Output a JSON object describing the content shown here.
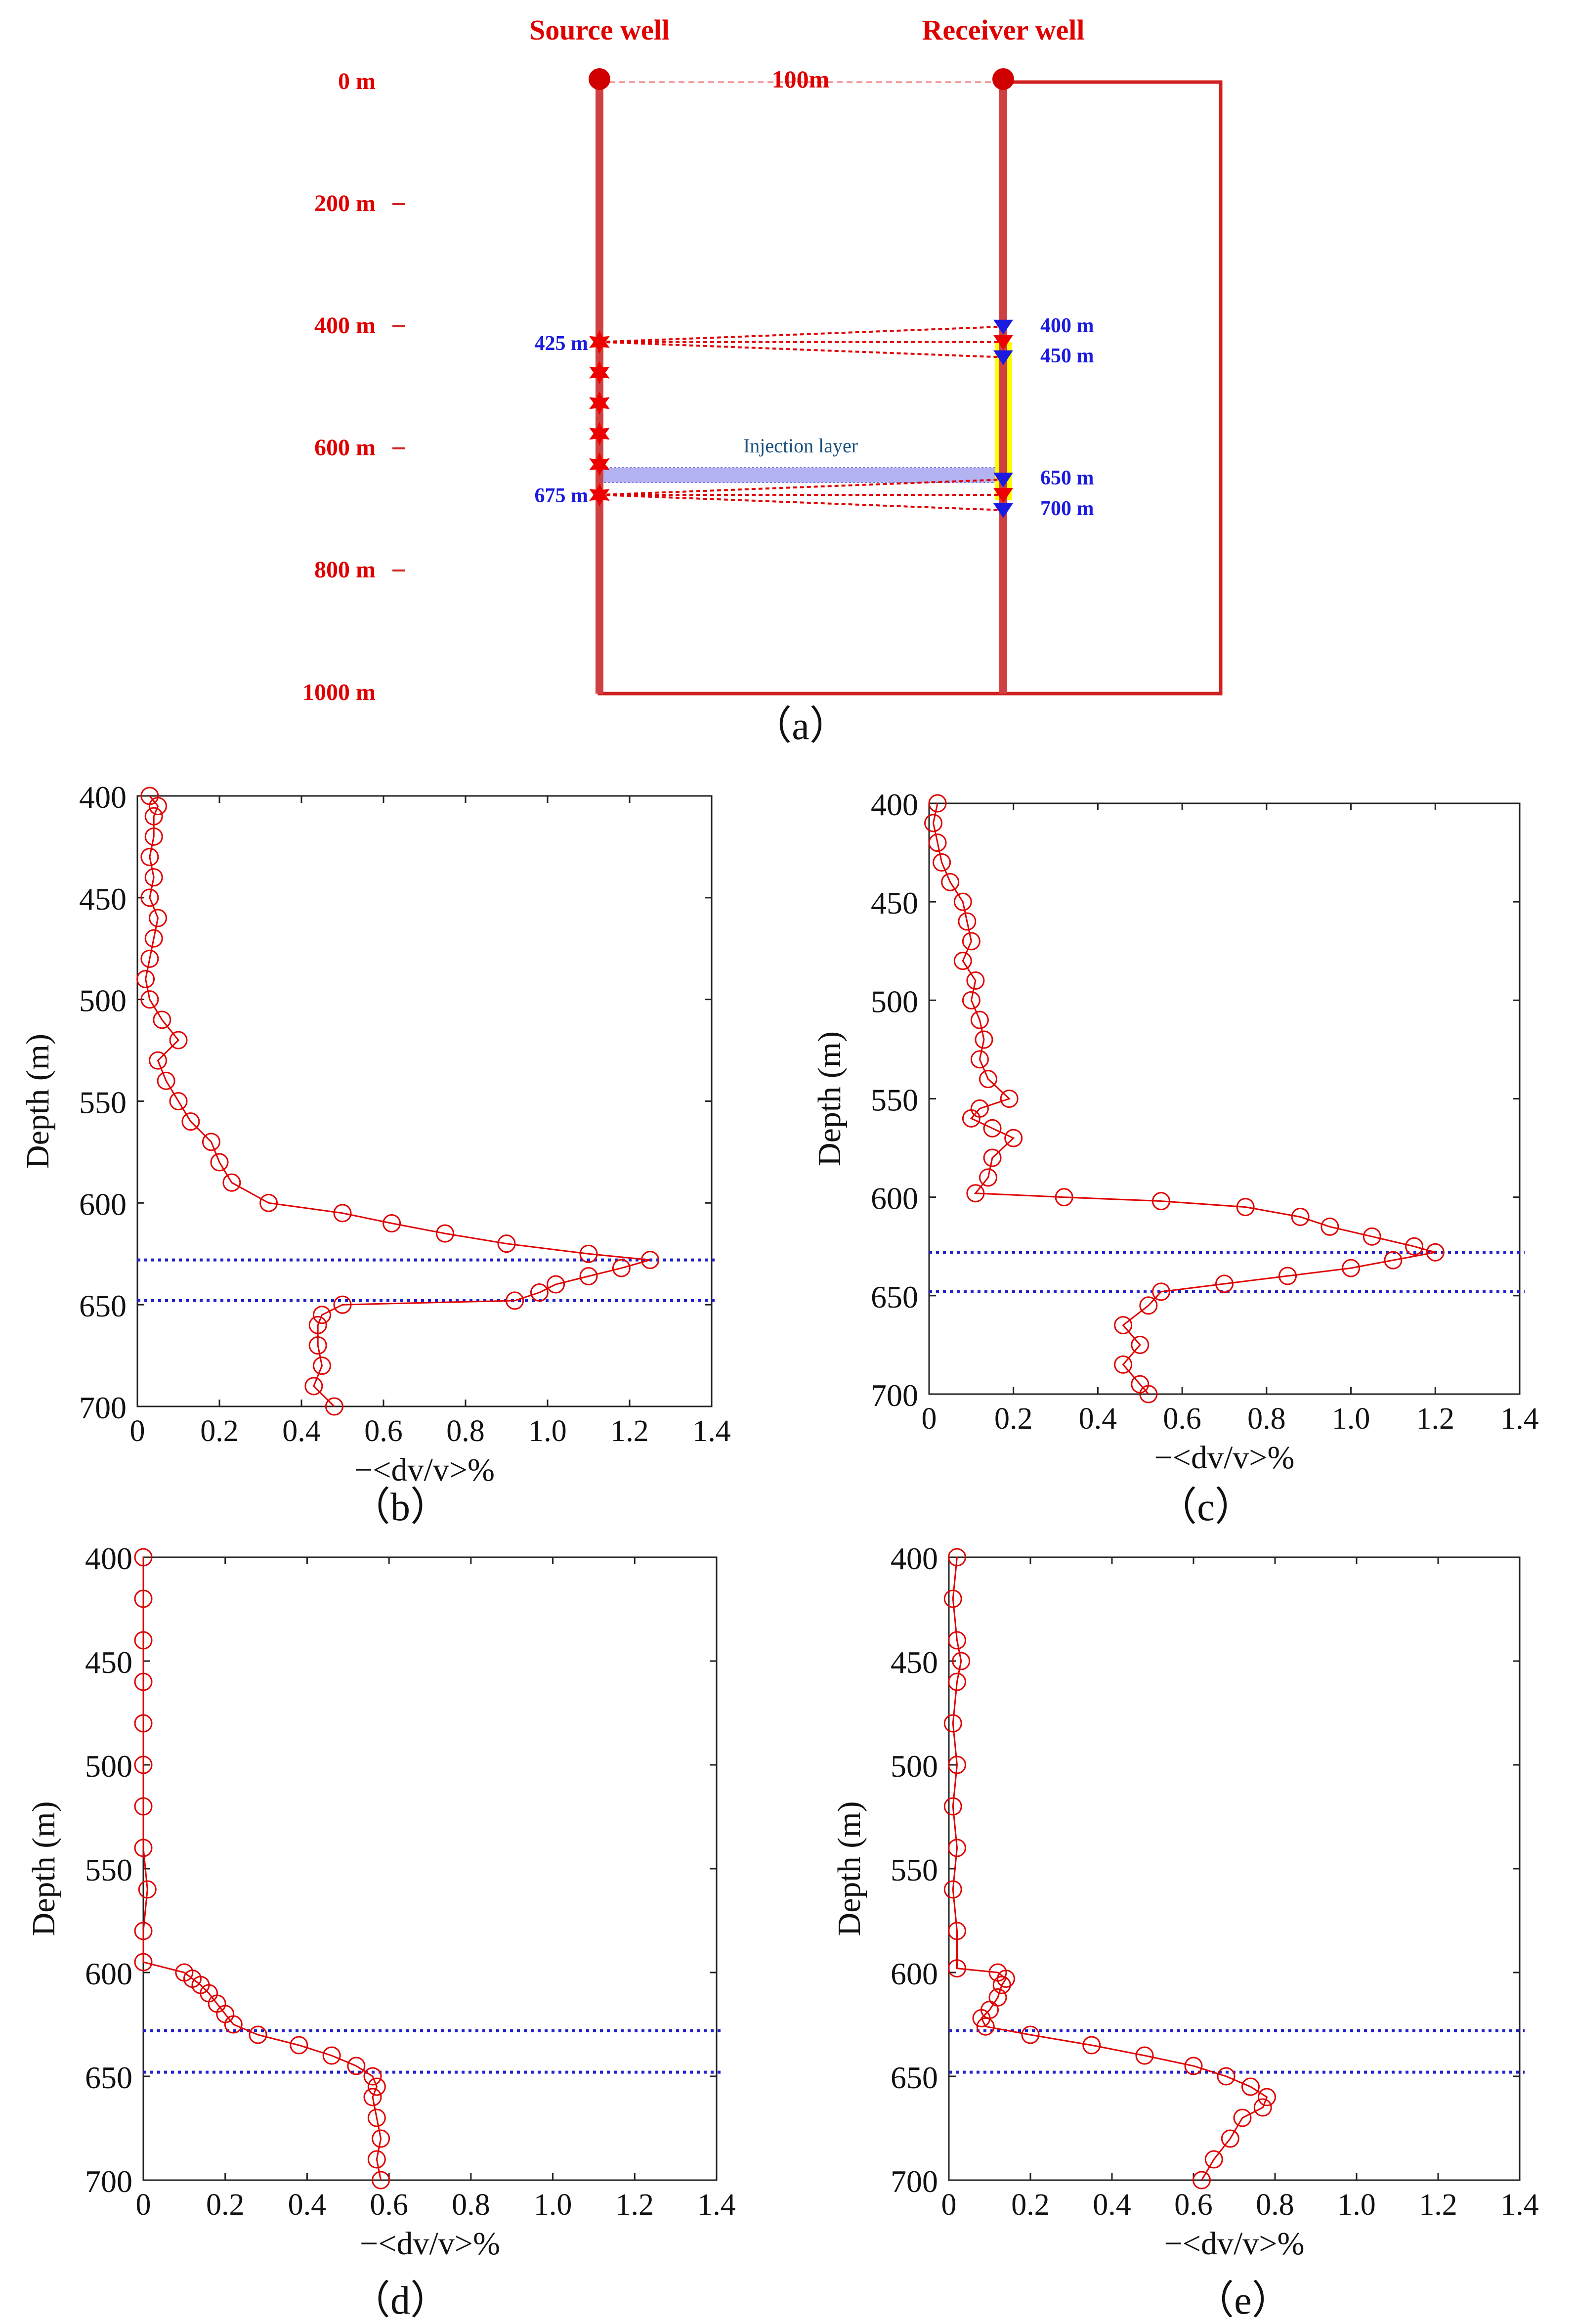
{
  "panel_a": {
    "label": "（a）",
    "source_well_label": "Source well",
    "receiver_well_label": "Receiver well",
    "well_distance_label": "100m",
    "depth_labels": [
      "0 m",
      "200 m",
      "400 m",
      "600 m",
      "800 m",
      "1000 m"
    ],
    "source_depth_labels": [
      "425 m",
      "675 m"
    ],
    "receiver_depth_labels": [
      "400 m",
      "450 m",
      "650 m",
      "700 m"
    ],
    "injection_layer_label": "Injection layer",
    "source_depths": [
      425,
      475,
      525,
      575,
      625,
      675
    ],
    "receiver_depths": [
      400,
      425,
      450,
      650,
      675,
      700
    ],
    "injection_layer_depths": [
      630,
      650
    ],
    "colors": {
      "well": "#d04040",
      "text_red": "#e00000",
      "text_blue": "#1a1ae0",
      "receiver_highlight": "#ffff00",
      "injection_layer": "#8888ee"
    }
  },
  "chart_data": [
    {
      "panel": "b",
      "type": "line",
      "label": "（b）",
      "xlabel": "−<dv/v>%",
      "ylabel": "Depth (m)",
      "xlim": [
        0,
        1.4
      ],
      "ylim": [
        700,
        400
      ],
      "xticks": [
        "0",
        "0.2",
        "0.4",
        "0.6",
        "0.8",
        "1.0",
        "1.2",
        "1.4"
      ],
      "yticks": [
        "400",
        "450",
        "500",
        "550",
        "600",
        "650",
        "700"
      ],
      "reference_lines": [
        628,
        648
      ],
      "series": [
        {
          "name": "dv/v",
          "depth": [
            400,
            405,
            410,
            420,
            430,
            440,
            450,
            460,
            470,
            480,
            490,
            500,
            510,
            520,
            530,
            540,
            550,
            560,
            570,
            580,
            590,
            600,
            605,
            610,
            615,
            620,
            625,
            628,
            632,
            636,
            640,
            644,
            648,
            650,
            655,
            660,
            670,
            680,
            690,
            700
          ],
          "value": [
            0.03,
            0.05,
            0.04,
            0.04,
            0.03,
            0.04,
            0.03,
            0.05,
            0.04,
            0.03,
            0.02,
            0.03,
            0.06,
            0.1,
            0.05,
            0.07,
            0.1,
            0.13,
            0.18,
            0.2,
            0.23,
            0.32,
            0.5,
            0.62,
            0.75,
            0.9,
            1.1,
            1.25,
            1.18,
            1.1,
            1.02,
            0.98,
            0.92,
            0.5,
            0.45,
            0.44,
            0.44,
            0.45,
            0.43,
            0.48
          ]
        }
      ]
    },
    {
      "panel": "c",
      "type": "line",
      "label": "（c）",
      "xlabel": "−<dv/v>%",
      "ylabel": "Depth (m)",
      "xlim": [
        0,
        1.4
      ],
      "ylim": [
        700,
        400
      ],
      "xticks": [
        "0",
        "0.2",
        "0.4",
        "0.6",
        "0.8",
        "1.0",
        "1.2",
        "1.4"
      ],
      "yticks": [
        "400",
        "450",
        "500",
        "550",
        "600",
        "650",
        "700"
      ],
      "reference_lines": [
        628,
        648
      ],
      "series": [
        {
          "name": "dv/v",
          "depth": [
            400,
            410,
            420,
            430,
            440,
            450,
            460,
            470,
            480,
            490,
            500,
            510,
            520,
            530,
            540,
            550,
            555,
            560,
            565,
            570,
            580,
            590,
            598,
            600,
            602,
            605,
            610,
            615,
            620,
            625,
            628,
            632,
            636,
            640,
            644,
            648,
            655,
            665,
            675,
            685,
            695,
            700
          ],
          "value": [
            0.02,
            0.01,
            0.02,
            0.03,
            0.05,
            0.08,
            0.09,
            0.1,
            0.08,
            0.11,
            0.1,
            0.12,
            0.13,
            0.12,
            0.14,
            0.19,
            0.12,
            0.1,
            0.15,
            0.2,
            0.15,
            0.14,
            0.11,
            0.32,
            0.55,
            0.75,
            0.88,
            0.95,
            1.05,
            1.15,
            1.2,
            1.1,
            1.0,
            0.85,
            0.7,
            0.55,
            0.52,
            0.46,
            0.5,
            0.46,
            0.5,
            0.52
          ]
        }
      ]
    },
    {
      "panel": "d",
      "type": "line",
      "label": "（d）",
      "xlabel": "−<dv/v>%",
      "ylabel": "Depth (m)",
      "xlim": [
        0,
        1.4
      ],
      "ylim": [
        700,
        400
      ],
      "xticks": [
        "0",
        "0.2",
        "0.4",
        "0.6",
        "0.8",
        "1.0",
        "1.2",
        "1.4"
      ],
      "yticks": [
        "400",
        "450",
        "500",
        "550",
        "600",
        "650",
        "700"
      ],
      "reference_lines": [
        628,
        648
      ],
      "series": [
        {
          "name": "dv/v",
          "depth": [
            400,
            420,
            440,
            460,
            480,
            500,
            520,
            540,
            560,
            580,
            595,
            600,
            603,
            606,
            610,
            615,
            620,
            625,
            630,
            635,
            640,
            645,
            650,
            655,
            660,
            670,
            680,
            690,
            700
          ],
          "value": [
            0.0,
            0.0,
            0.0,
            0.0,
            0.0,
            0.0,
            0.0,
            0.0,
            0.01,
            0.0,
            0.0,
            0.1,
            0.12,
            0.14,
            0.16,
            0.18,
            0.2,
            0.22,
            0.28,
            0.38,
            0.46,
            0.52,
            0.56,
            0.57,
            0.56,
            0.57,
            0.58,
            0.57,
            0.58
          ]
        }
      ]
    },
    {
      "panel": "e",
      "type": "line",
      "label": "（e）",
      "xlabel": "−<dv/v>%",
      "ylabel": "Depth (m)",
      "xlim": [
        0,
        1.4
      ],
      "ylim": [
        700,
        400
      ],
      "xticks": [
        "0",
        "0.2",
        "0.4",
        "0.6",
        "0.8",
        "1.0",
        "1.2",
        "1.4"
      ],
      "yticks": [
        "400",
        "450",
        "500",
        "550",
        "600",
        "650",
        "700"
      ],
      "reference_lines": [
        628,
        648
      ],
      "series": [
        {
          "name": "dv/v",
          "depth": [
            400,
            420,
            440,
            450,
            460,
            480,
            500,
            520,
            540,
            560,
            580,
            598,
            600,
            603,
            606,
            612,
            618,
            622,
            626,
            630,
            635,
            640,
            645,
            650,
            655,
            660,
            665,
            670,
            680,
            690,
            700
          ],
          "value": [
            0.02,
            0.01,
            0.02,
            0.03,
            0.02,
            0.01,
            0.02,
            0.01,
            0.02,
            0.01,
            0.02,
            0.02,
            0.12,
            0.14,
            0.13,
            0.12,
            0.1,
            0.08,
            0.09,
            0.2,
            0.35,
            0.48,
            0.6,
            0.68,
            0.74,
            0.78,
            0.77,
            0.72,
            0.69,
            0.65,
            0.62
          ]
        }
      ]
    }
  ]
}
